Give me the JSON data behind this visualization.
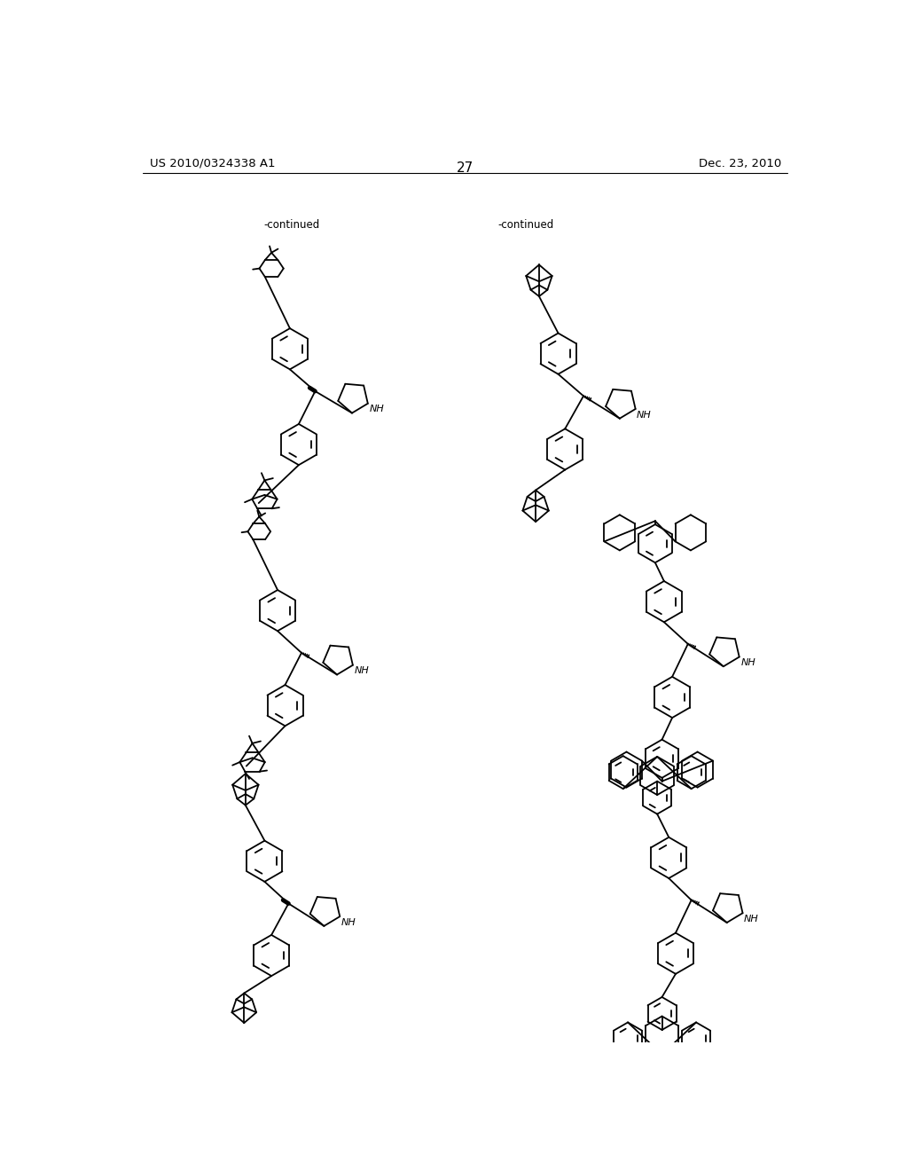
{
  "page_number": "27",
  "patent_number": "US 2010/0324338 A1",
  "date": "Dec. 23, 2010",
  "continued_label": "-continued",
  "background_color": "#ffffff",
  "text_color": "#000000",
  "line_color": "#000000",
  "lw": 1.3
}
